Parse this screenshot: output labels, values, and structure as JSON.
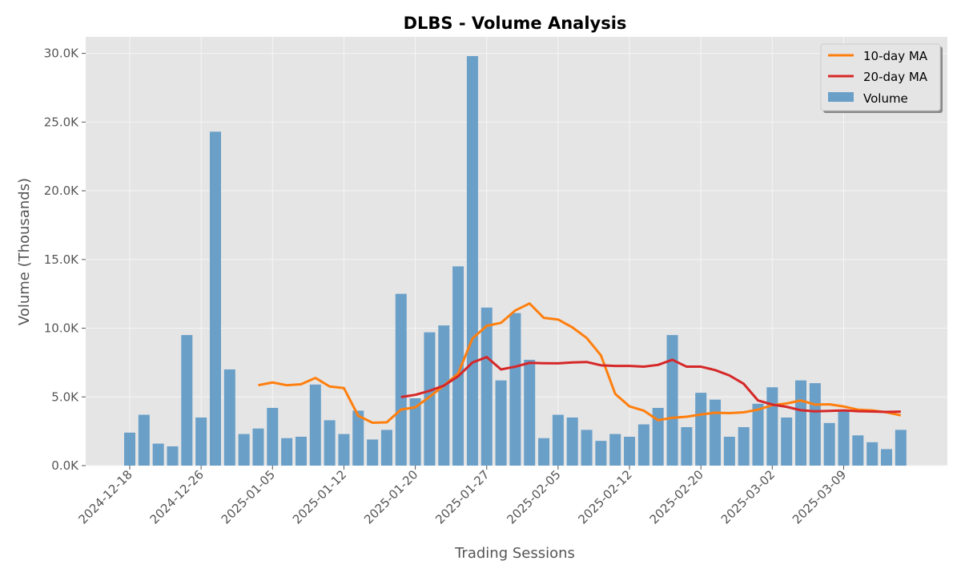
{
  "chart_data": {
    "type": "bar",
    "title": "DLBS - Volume Analysis",
    "xlabel": "Trading Sessions",
    "ylabel": "Volume (Thousands)",
    "ylim": [
      0,
      31200
    ],
    "y_ticks": [
      0,
      5000,
      10000,
      15000,
      20000,
      25000,
      30000
    ],
    "y_tick_labels": [
      "0.0K",
      "5.0K",
      "10.0K",
      "15.0K",
      "20.0K",
      "25.0K",
      "30.0K"
    ],
    "x_tick_labels": [
      "2024-12-18",
      "2024-12-26",
      "2025-01-05",
      "2025-01-12",
      "2025-01-20",
      "2025-01-27",
      "2025-02-05",
      "2025-02-12",
      "2025-02-20",
      "2025-03-02",
      "2025-03-09"
    ],
    "x_tick_indices": [
      0,
      5,
      10,
      15,
      20,
      25,
      30,
      35,
      40,
      45,
      50
    ],
    "grid": true,
    "legend_position": "top-right",
    "colors": {
      "volume": "#6a9fc8",
      "ma10": "#ff7f0e",
      "ma20": "#d62728",
      "plot_bg": "#e5e5e5",
      "grid": "#f5f5f5"
    },
    "series": [
      {
        "name": "Volume",
        "kind": "bar",
        "values": [
          2400,
          3700,
          1600,
          1400,
          9500,
          3500,
          24300,
          7000,
          2300,
          2700,
          4200,
          2000,
          2100,
          5900,
          3300,
          2300,
          4000,
          1900,
          2600,
          12500,
          4900,
          9700,
          10200,
          14500,
          29800,
          11500,
          6200,
          11100,
          7700,
          2000,
          3700,
          3500,
          2600,
          1800,
          2300,
          2100,
          3000,
          4200,
          9500,
          2800,
          5300,
          4800,
          2100,
          2800,
          4500,
          5700,
          3500,
          6200,
          6000,
          3100,
          4000,
          2200,
          1700,
          1200,
          2600
        ]
      },
      {
        "name": "10-day MA",
        "kind": "line",
        "values": [
          null,
          null,
          null,
          null,
          null,
          null,
          null,
          null,
          null,
          5850,
          6050,
          5850,
          5920,
          6380,
          5760,
          5640,
          3630,
          3120,
          3150,
          4080,
          4240,
          5010,
          5820,
          6700,
          9250,
          10170,
          10390,
          11290,
          11800,
          10750,
          10630,
          10060,
          9290,
          8020,
          5220,
          4310,
          4000,
          3300,
          3480,
          3560,
          3720,
          3850,
          3820,
          3880,
          4070,
          4400,
          4520,
          4740,
          4440,
          4460,
          4300,
          4070,
          4020,
          3880,
          3660
        ]
      },
      {
        "name": "20-day MA",
        "kind": "line",
        "values": [
          null,
          null,
          null,
          null,
          null,
          null,
          null,
          null,
          null,
          null,
          null,
          null,
          null,
          null,
          null,
          null,
          null,
          null,
          null,
          4990,
          5150,
          5440,
          5820,
          6500,
          7500,
          7900,
          7000,
          7200,
          7480,
          7450,
          7440,
          7510,
          7540,
          7300,
          7250,
          7250,
          7200,
          7330,
          7700,
          7200,
          7200,
          6950,
          6560,
          5950,
          4740,
          4440,
          4280,
          4030,
          3950,
          3980,
          4020,
          3960,
          3940,
          3910,
          3930
        ]
      }
    ]
  }
}
